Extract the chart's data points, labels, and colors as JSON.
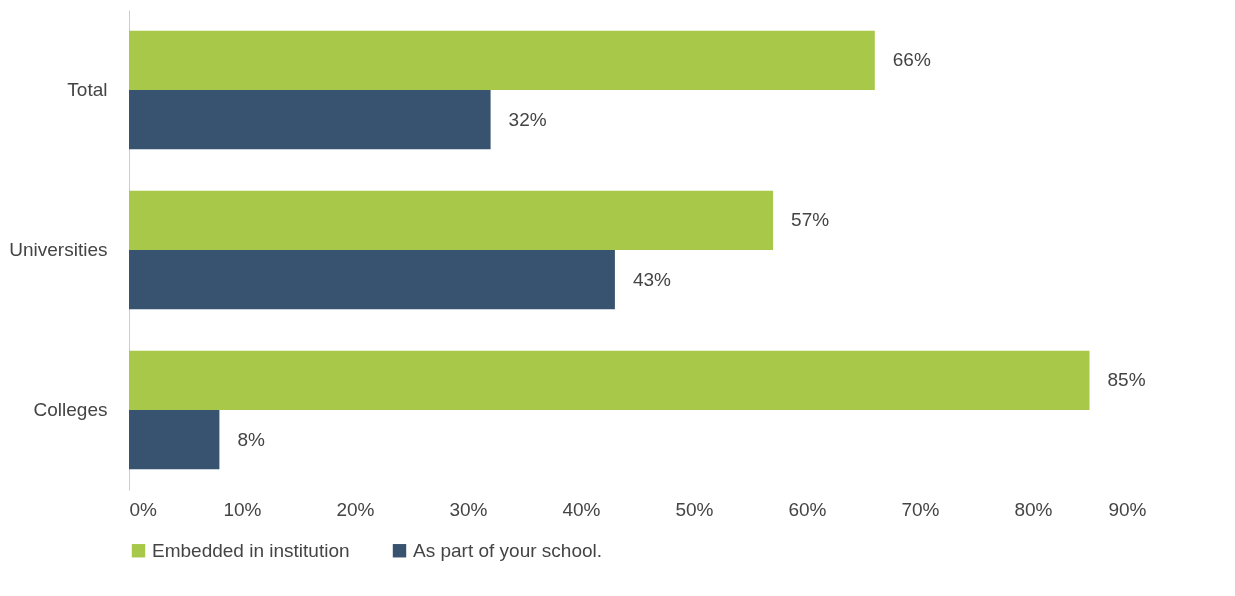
{
  "chart_data": {
    "type": "bar",
    "orientation": "horizontal",
    "categories": [
      "Total",
      "Universities",
      "Colleges"
    ],
    "series": [
      {
        "name": "Embedded in institution",
        "color": "#a8c84a",
        "values": [
          66,
          57,
          85
        ],
        "value_labels": [
          "66%",
          "57%",
          "85%"
        ]
      },
      {
        "name": "As part of your school.",
        "color": "#37536f",
        "values": [
          32,
          43,
          8
        ],
        "value_labels": [
          "32%",
          "43%",
          "8%"
        ]
      }
    ],
    "xlim": [
      0,
      90
    ],
    "xticks": [
      {
        "value": 0,
        "label": "0%"
      },
      {
        "value": 10,
        "label": "10%"
      },
      {
        "value": 20,
        "label": "20%"
      },
      {
        "value": 30,
        "label": "30%"
      },
      {
        "value": 40,
        "label": "40%"
      },
      {
        "value": 50,
        "label": "50%"
      },
      {
        "value": 60,
        "label": "60%"
      },
      {
        "value": 70,
        "label": "70%"
      },
      {
        "value": 80,
        "label": "80%"
      },
      {
        "value": 90,
        "label": "90%"
      }
    ],
    "grid": false,
    "legend": "bottom"
  }
}
